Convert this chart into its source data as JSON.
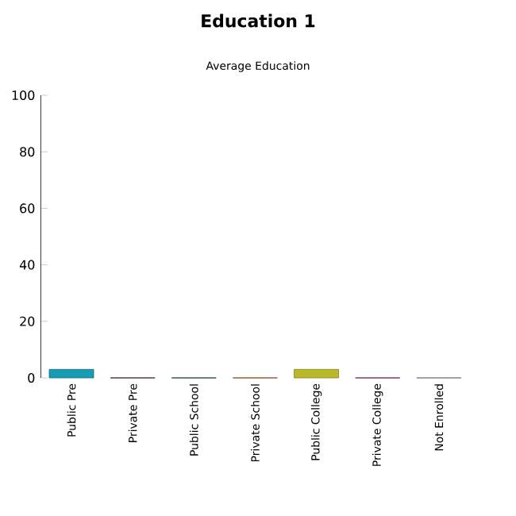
{
  "chart_data": {
    "type": "bar",
    "title": "Education 1",
    "subtitle": "Average Education",
    "categories": [
      "Public Pre",
      "Private Pre",
      "Public School",
      "Private School",
      "Public College",
      "Private College",
      "Not Enrolled"
    ],
    "values": [
      3,
      0,
      0,
      0,
      3,
      0,
      0
    ],
    "colors": [
      "#1a9bb5",
      "#6b1518",
      "#1b5e3a",
      "#c8602a",
      "#b8b82a",
      "#8b1e8b",
      "#a0a0a0"
    ],
    "ylim": [
      0,
      100
    ],
    "yticks": [
      0,
      20,
      40,
      60,
      80,
      100
    ]
  }
}
